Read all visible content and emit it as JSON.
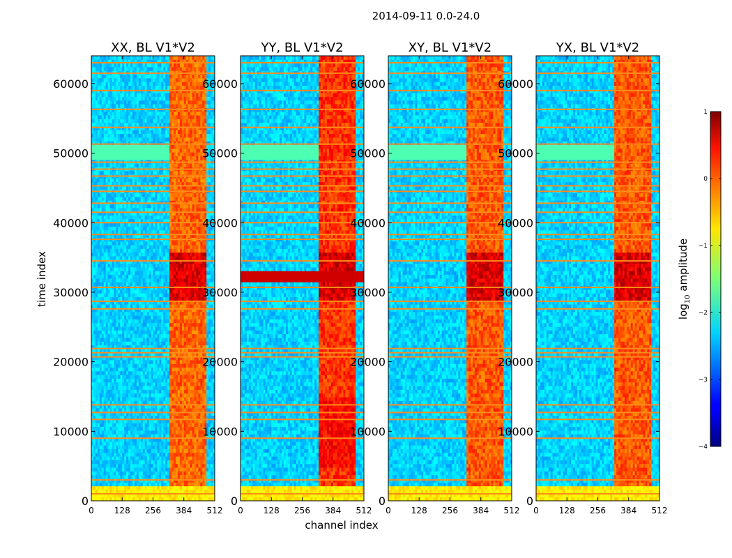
{
  "chart_data": {
    "type": "heatmap",
    "title": "2014-09-11 0.0-24.0",
    "xlabel": "channel index",
    "ylabel": "time index",
    "xlim": [
      0,
      512
    ],
    "ylim": [
      0,
      64000
    ],
    "x_ticks": [
      0,
      128,
      256,
      384,
      512
    ],
    "y_ticks": [
      0,
      10000,
      20000,
      30000,
      40000,
      50000,
      60000
    ],
    "colorbar": {
      "label_prefix": "log",
      "label_sub": "10",
      "label_suffix": " amplitude",
      "range": [
        -4,
        1
      ],
      "ticks": [
        1,
        0,
        -1,
        -2,
        -3,
        -4
      ],
      "colormap": "jet"
    },
    "rfi_band_channels": [
      325,
      480
    ],
    "rfi_rows": [
      1000,
      3000,
      9000,
      11700,
      12700,
      13800,
      20700,
      21300,
      21900,
      27600,
      28700,
      30700,
      34500,
      37600,
      38300,
      40000,
      41500,
      42800,
      44500,
      45300,
      46700,
      47700,
      48700,
      51300,
      53700,
      56300,
      59000,
      61500,
      63000
    ],
    "panels": [
      {
        "title": "XX, BL V1*V2",
        "band_strength": 0.55,
        "pol": "XX"
      },
      {
        "title": "YY, BL V1*V2",
        "band_strength": 0.75,
        "pol": "YY"
      },
      {
        "title": "XY, BL V1*V2",
        "band_strength": 0.6,
        "pol": "XY"
      },
      {
        "title": "YX, BL V1*V2",
        "band_strength": 0.6,
        "pol": "YX"
      }
    ]
  }
}
